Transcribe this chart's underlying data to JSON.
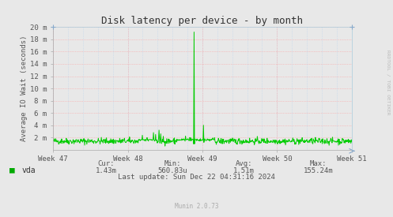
{
  "title": "Disk latency per device - by month",
  "ylabel": "Average IO Wait (seconds)",
  "background_color": "#e8e8e8",
  "plot_bg_color": "#e8e8e8",
  "grid_color_h": "#ff9999",
  "grid_color_v": "#aaccee",
  "line_color": "#00cc00",
  "ytick_labels": [
    "2 m",
    "4 m",
    "6 m",
    "8 m",
    "10 m",
    "12 m",
    "14 m",
    "16 m",
    "18 m",
    "20 m"
  ],
  "ytick_values": [
    0.002,
    0.004,
    0.006,
    0.008,
    0.01,
    0.012,
    0.014,
    0.016,
    0.018,
    0.02
  ],
  "ylim": [
    0,
    0.02
  ],
  "xtick_labels": [
    "Week 47",
    "Week 48",
    "Week 49",
    "Week 50",
    "Week 51"
  ],
  "legend_label": "vda",
  "legend_color": "#00aa00",
  "cur": "1.43m",
  "min": "560.83u",
  "avg": "1.51m",
  "max": "155.24m",
  "last_update": "Last update: Sun Dec 22 04:31:16 2024",
  "munin_label": "Munin 2.0.73",
  "rrdtool_label": "RRDTOOL / TOBI OETIKER",
  "n_points": 700,
  "spike_index": 330,
  "spike2_index": 352,
  "spike_value": 0.0192,
  "spike2_value": 0.004,
  "base_value": 0.0014,
  "noise_amp": 0.00025,
  "title_fontsize": 9,
  "axis_fontsize": 6.5,
  "tick_fontsize": 6.5,
  "legend_fontsize": 7,
  "stat_fontsize": 6.5
}
